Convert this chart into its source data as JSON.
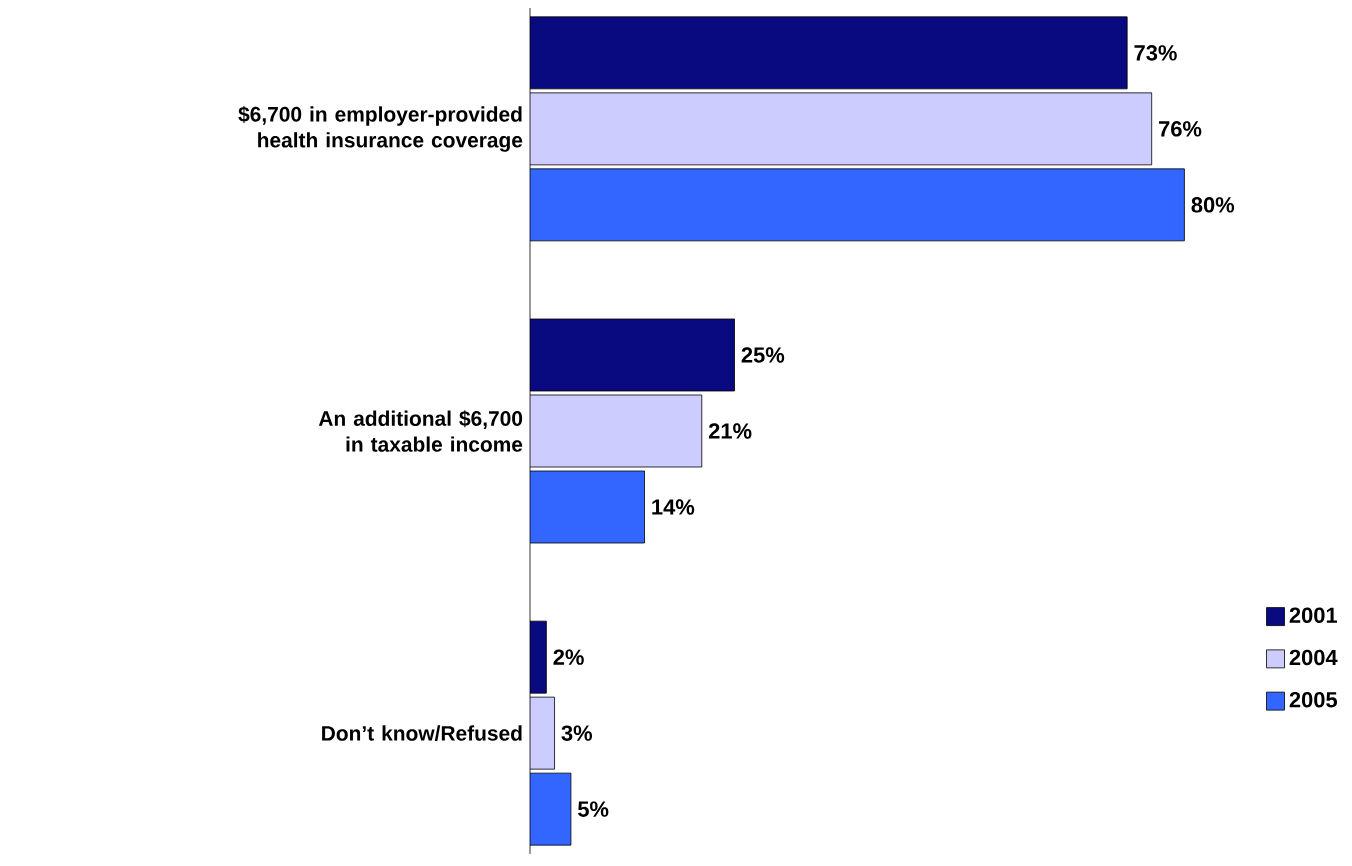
{
  "chart_data": {
    "type": "bar",
    "orientation": "horizontal",
    "categories": [
      "$6,700 in employer-provided health insurance coverage",
      "An additional $6,700 in taxable income",
      "Don’t know/Refused"
    ],
    "series": [
      {
        "name": "2001",
        "color": "#0a0a80",
        "values": [
          73,
          25,
          2
        ],
        "value_labels": [
          "73%",
          "25%",
          "2%"
        ]
      },
      {
        "name": "2004",
        "color": "#ccccff",
        "values": [
          76,
          21,
          3
        ],
        "value_labels": [
          "76%",
          "21%",
          "3%"
        ]
      },
      {
        "name": "2005",
        "color": "#3366ff",
        "values": [
          80,
          14,
          5
        ],
        "value_labels": [
          "80%",
          "14%",
          "5%"
        ]
      }
    ],
    "legend": "bottom right",
    "tick_labels": "y"
  }
}
